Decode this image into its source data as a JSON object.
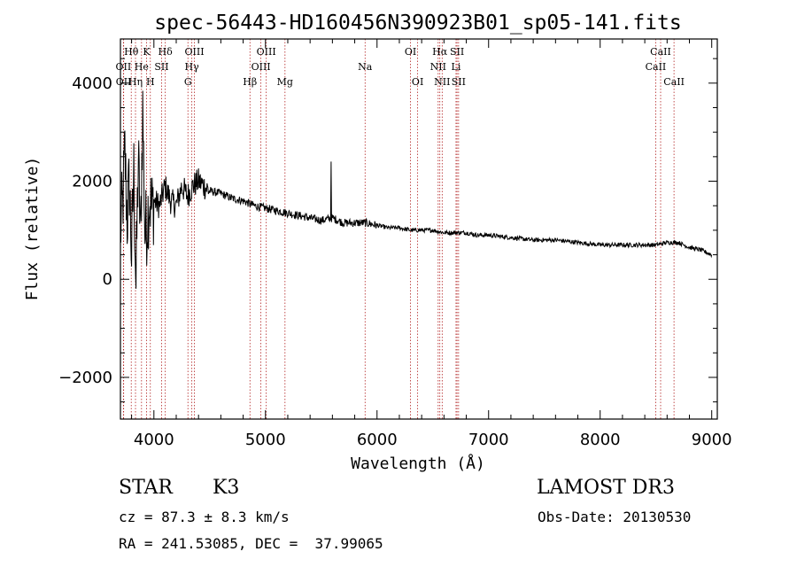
{
  "chart_data": {
    "type": "line",
    "title": "spec-56443-HD160456N390923B01_sp05-141.fits",
    "xlabel": "Wavelength (Å)",
    "ylabel": "Flux (relative)",
    "xlim": [
      3700,
      9050
    ],
    "ylim": [
      -2850,
      4900
    ],
    "xticks": [
      4000,
      5000,
      6000,
      7000,
      8000,
      9000
    ],
    "xtick_labels": [
      "4000",
      "5000",
      "6000",
      "7000",
      "8000",
      "9000"
    ],
    "yticks": [
      -2000,
      0,
      2000,
      4000
    ],
    "ytick_labels": [
      "−2000",
      "0",
      "2000",
      "4000"
    ],
    "grid": false,
    "series": [
      {
        "name": "flux",
        "x": [
          3700,
          3720,
          3740,
          3760,
          3780,
          3800,
          3820,
          3840,
          3860,
          3880,
          3900,
          3920,
          3940,
          3960,
          3980,
          4000,
          4050,
          4100,
          4150,
          4200,
          4250,
          4300,
          4350,
          4400,
          4500,
          4600,
          4700,
          4800,
          4900,
          5000,
          5100,
          5200,
          5300,
          5400,
          5500,
          5600,
          5700,
          5800,
          5900,
          6000,
          6100,
          6200,
          6300,
          6400,
          6500,
          6600,
          6700,
          6800,
          6900,
          7000,
          7200,
          7400,
          7600,
          7800,
          8000,
          8200,
          8400,
          8500,
          8600,
          8700,
          8800,
          8900,
          9000
        ],
        "y": [
          1000,
          1500,
          2600,
          1200,
          2000,
          500,
          2200,
          -200,
          2500,
          800,
          3500,
          900,
          1200,
          1700,
          1400,
          1600,
          1500,
          1900,
          1600,
          1500,
          1900,
          1700,
          1900,
          2000,
          1800,
          1750,
          1650,
          1600,
          1500,
          1450,
          1400,
          1350,
          1300,
          1250,
          1200,
          1250,
          1150,
          1150,
          1150,
          1100,
          1050,
          1050,
          1000,
          1000,
          1000,
          950,
          950,
          950,
          900,
          900,
          850,
          800,
          800,
          750,
          700,
          700,
          700,
          700,
          750,
          750,
          650,
          600,
          500
        ]
      }
    ],
    "lines": [
      {
        "label": "Hθ",
        "x": 3797,
        "row": 1
      },
      {
        "label": "K",
        "x": 3934,
        "row": 1
      },
      {
        "label": "Hδ",
        "x": 4102,
        "row": 1
      },
      {
        "label": "OIII",
        "x": 4363,
        "row": 1
      },
      {
        "label": "OIII",
        "x": 5007,
        "row": 1
      },
      {
        "label": "OI",
        "x": 6300,
        "row": 1
      },
      {
        "label": "Hα",
        "x": 6563,
        "row": 1
      },
      {
        "label": "SII",
        "x": 6717,
        "row": 1
      },
      {
        "label": "CaII",
        "x": 8542,
        "row": 1
      },
      {
        "label": "OII",
        "x": 3727,
        "row": 2
      },
      {
        "label": "He",
        "x": 3889,
        "row": 2
      },
      {
        "label": "SII",
        "x": 4069,
        "row": 2
      },
      {
        "label": "Hγ",
        "x": 4340,
        "row": 2
      },
      {
        "label": "OIII",
        "x": 4959,
        "row": 2
      },
      {
        "label": "Na",
        "x": 5893,
        "row": 2
      },
      {
        "label": "NII",
        "x": 6548,
        "row": 2
      },
      {
        "label": "Li",
        "x": 6708,
        "row": 2
      },
      {
        "label": "CaII",
        "x": 8498,
        "row": 2
      },
      {
        "label": "OII",
        "x": 3729,
        "row": 3
      },
      {
        "label": "Hη",
        "x": 3835,
        "row": 3
      },
      {
        "label": "H",
        "x": 3968,
        "row": 3
      },
      {
        "label": "G",
        "x": 4305,
        "row": 3
      },
      {
        "label": "Hβ",
        "x": 4861,
        "row": 3
      },
      {
        "label": "Mg",
        "x": 5175,
        "row": 3
      },
      {
        "label": "OI",
        "x": 6364,
        "row": 3
      },
      {
        "label": "NII",
        "x": 6584,
        "row": 3
      },
      {
        "label": "SII",
        "x": 6731,
        "row": 3
      },
      {
        "label": "CaII",
        "x": 8662,
        "row": 3
      }
    ]
  },
  "info": {
    "object_class": "STAR",
    "subclass": "K3",
    "survey": "LAMOST DR3",
    "cz": "cz = 87.3 ± 8.3 km/s",
    "obs_date": "Obs-Date: 20130530",
    "radec": "RA = 241.53085, DEC =  37.99065"
  }
}
